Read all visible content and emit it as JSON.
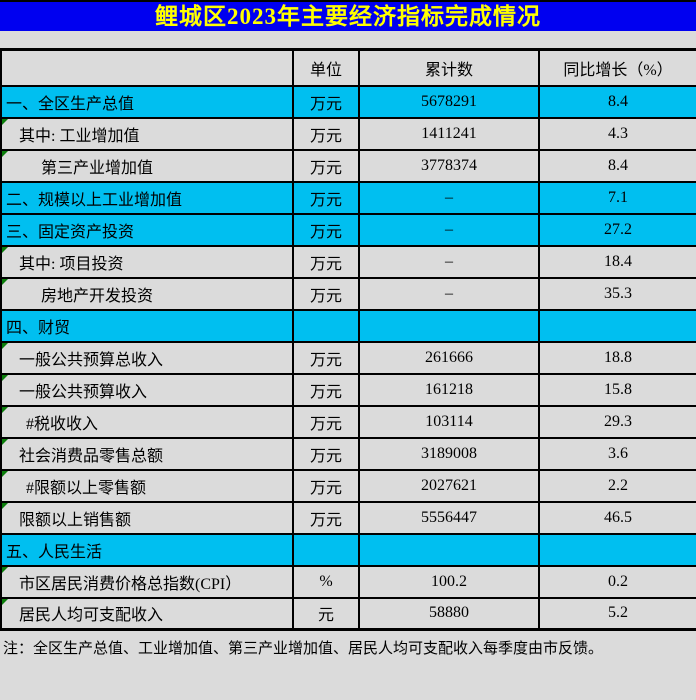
{
  "title": "鲤城区2023年主要经济指标完成情况",
  "colors": {
    "title_bar_bg": "#0000F0",
    "title_text": "#FFFF00",
    "category_row_bg": "#00BFF0",
    "data_row_bg": "#DBDBDB",
    "grid_border": "#000000",
    "flag_triangle_green": "#0B7D0B"
  },
  "table": {
    "headers": {
      "indicator": "",
      "unit": "单位",
      "value": "累计数",
      "growth": "同比增长（%）"
    },
    "rows": [
      {
        "name": "一、全区生产总值",
        "unit": "万元",
        "value": "5678291",
        "growth": "8.4",
        "style": "category",
        "indent": "cat",
        "flag": false
      },
      {
        "name": "其中: 工业增加值",
        "unit": "万元",
        "value": "1411241",
        "growth": "4.3",
        "style": "data",
        "indent": "l1",
        "flag": true
      },
      {
        "name": "第三产业增加值",
        "unit": "万元",
        "value": "3778374",
        "growth": "8.4",
        "style": "data",
        "indent": "l2",
        "flag": true
      },
      {
        "name": "二、规模以上工业增加值",
        "unit": "万元",
        "value": "–",
        "growth": "7.1",
        "style": "category",
        "indent": "cat",
        "flag": false
      },
      {
        "name": "三、固定资产投资",
        "unit": "万元",
        "value": "–",
        "growth": "27.2",
        "style": "category",
        "indent": "cat",
        "flag": false
      },
      {
        "name": "其中: 项目投资",
        "unit": "万元",
        "value": "–",
        "growth": "18.4",
        "style": "data",
        "indent": "l1",
        "flag": true
      },
      {
        "name": "房地产开发投资",
        "unit": "万元",
        "value": "–",
        "growth": "35.3",
        "style": "data",
        "indent": "l2",
        "flag": true
      },
      {
        "name": "四、财贸",
        "unit": "",
        "value": "",
        "growth": "",
        "style": "category",
        "indent": "cat",
        "flag": false
      },
      {
        "name": "一般公共预算总收入",
        "unit": "万元",
        "value": "261666",
        "growth": "18.8",
        "style": "data",
        "indent": "l1",
        "flag": true
      },
      {
        "name": "一般公共预算收入",
        "unit": "万元",
        "value": "161218",
        "growth": "15.8",
        "style": "data",
        "indent": "l1",
        "flag": true
      },
      {
        "name": "#税收收入",
        "unit": "万元",
        "value": "103114",
        "growth": "29.3",
        "style": "data",
        "indent": "hash",
        "flag": true
      },
      {
        "name": "社会消费品零售总额",
        "unit": "万元",
        "value": "3189008",
        "growth": "3.6",
        "style": "data",
        "indent": "l1",
        "flag": true
      },
      {
        "name": "#限额以上零售额",
        "unit": "万元",
        "value": "2027621",
        "growth": "2.2",
        "style": "data",
        "indent": "hash",
        "flag": true
      },
      {
        "name": "限额以上销售额",
        "unit": "万元",
        "value": "5556447",
        "growth": "46.5",
        "style": "data",
        "indent": "l1",
        "flag": true
      },
      {
        "name": "五、人民生活",
        "unit": "",
        "value": "",
        "growth": "",
        "style": "category",
        "indent": "cat",
        "flag": false
      },
      {
        "name": "市区居民消费价格总指数(CPI）",
        "unit": "%",
        "value": "100.2",
        "growth": "0.2",
        "style": "data",
        "indent": "l1",
        "flag": true
      },
      {
        "name": "居民人均可支配收入",
        "unit": "元",
        "value": "58880",
        "growth": "5.2",
        "style": "data",
        "indent": "l1",
        "flag": true
      }
    ],
    "note": "注：全区生产总值、工业增加值、第三产业增加值、居民人均可支配收入每季度由市反馈。"
  }
}
